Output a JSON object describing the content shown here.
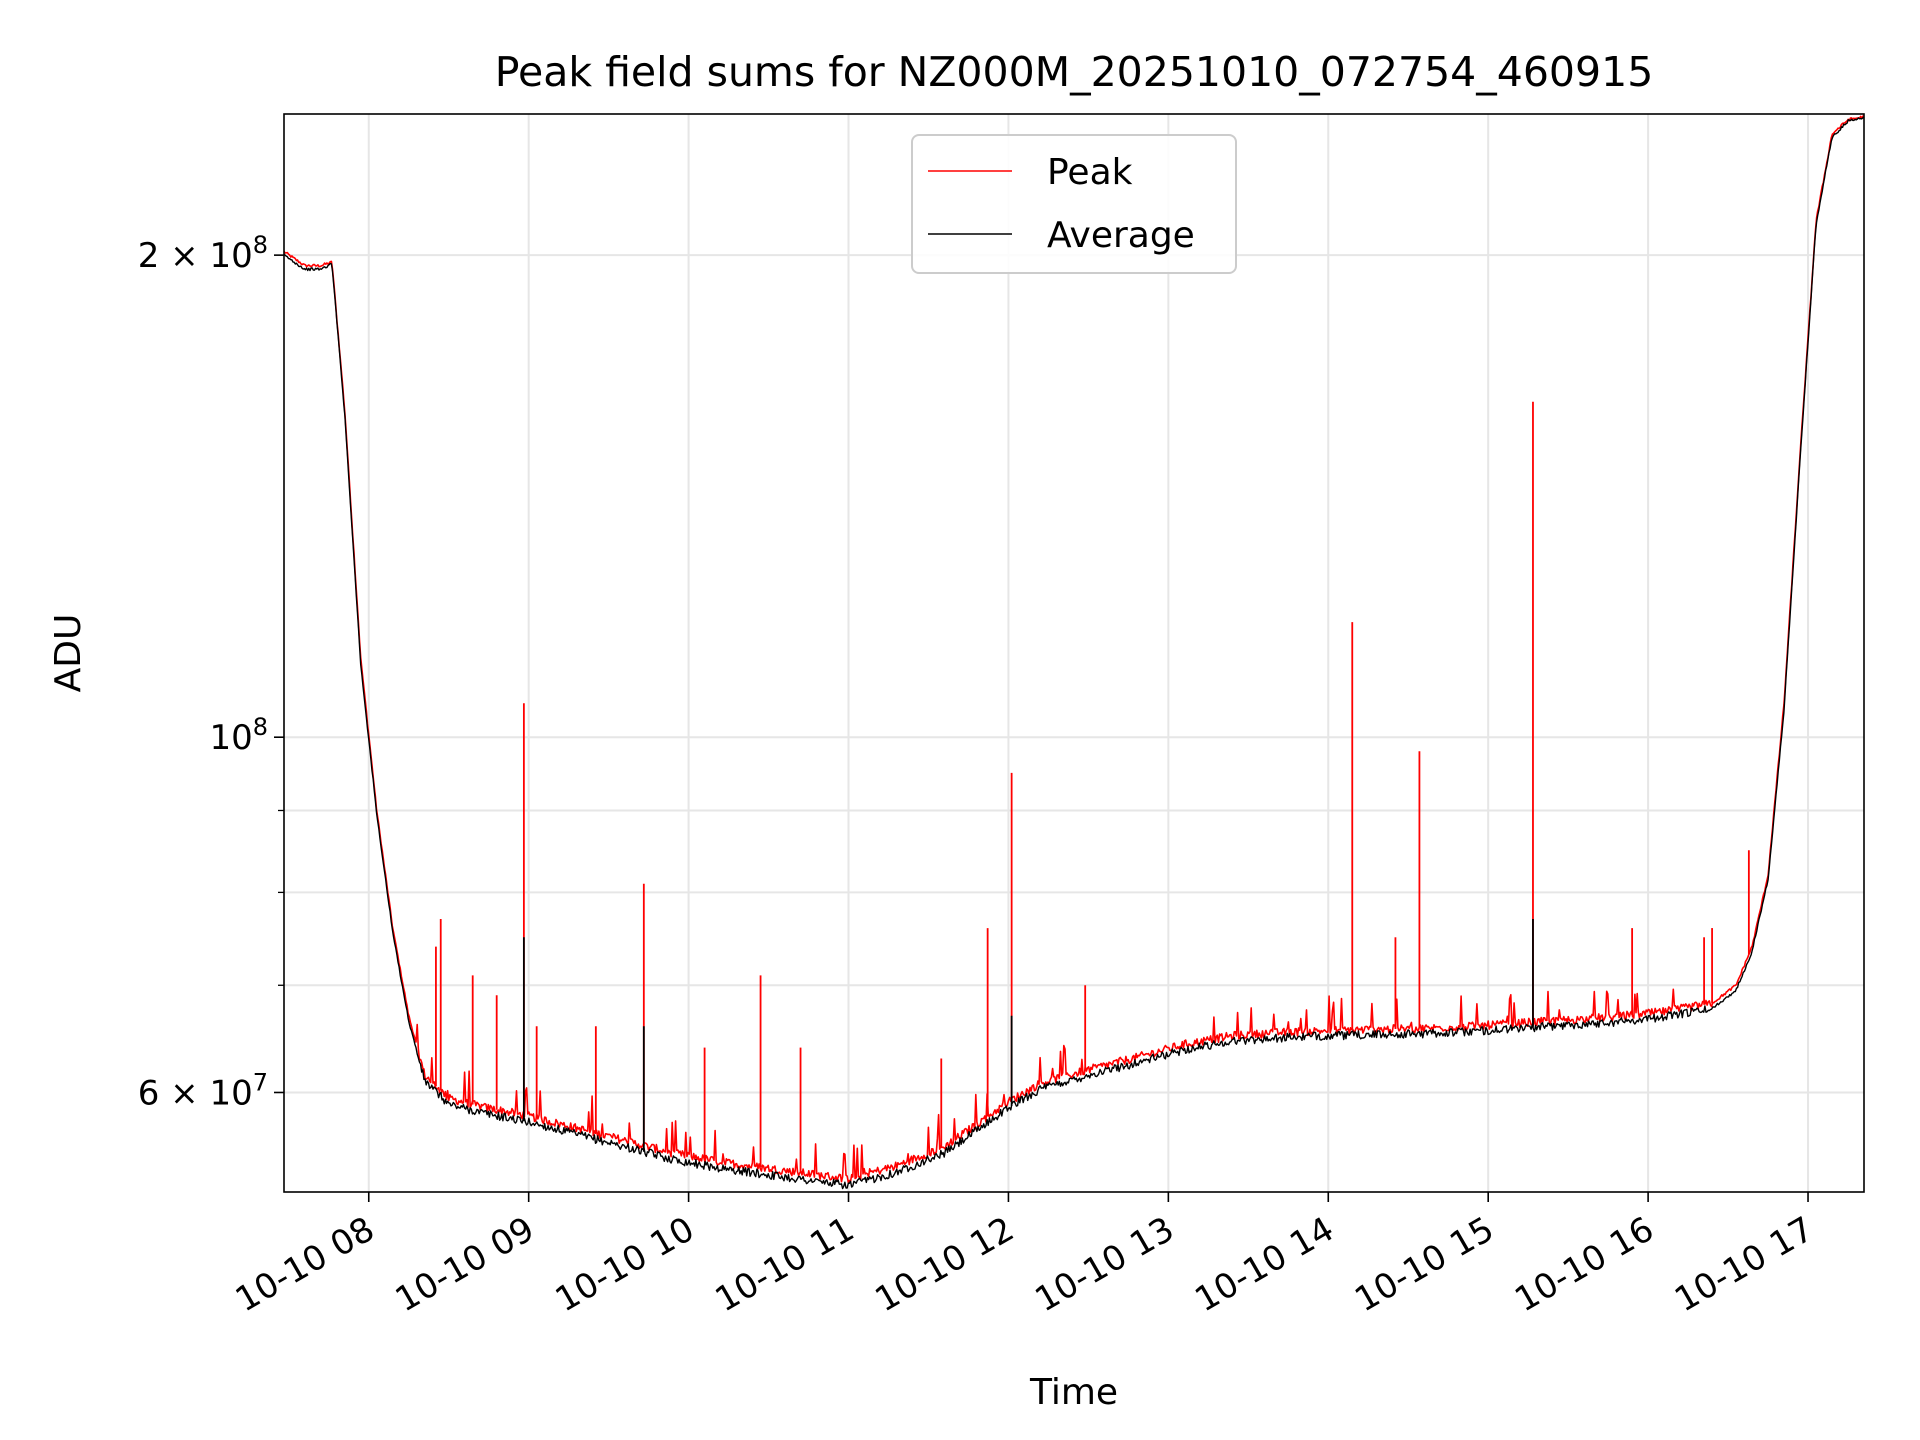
{
  "chart_data": {
    "type": "line",
    "title": "Peak field sums for NZ000M_20251010_072754_460915",
    "xlabel": "Time",
    "ylabel": "ADU",
    "yscale": "log",
    "grid": true,
    "legend_position": "top-center",
    "xlim": [
      7.47,
      17.35
    ],
    "ylim": [
      52000000,
      245000000
    ],
    "x_tick_values": [
      8,
      9,
      10,
      11,
      12,
      13,
      14,
      15,
      16,
      17
    ],
    "x_tick_labels": [
      "10-10 08",
      "10-10 09",
      "10-10 10",
      "10-10 11",
      "10-10 12",
      "10-10 13",
      "10-10 14",
      "10-10 15",
      "10-10 16",
      "10-10 17"
    ],
    "y_major_ticks": [
      {
        "value": 60000000,
        "mantissa": "6",
        "exponent": "7"
      },
      {
        "value": 100000000,
        "mantissa": "",
        "exponent": "8"
      },
      {
        "value": 200000000,
        "mantissa": "2",
        "exponent": "8"
      }
    ],
    "y_minor_ticks": [
      70000000,
      80000000,
      90000000
    ],
    "times_label": "×",
    "base_label": "10",
    "series": [
      {
        "name": "Peak",
        "color": "#ff0000",
        "x": [
          7.47,
          7.6,
          7.7,
          7.77,
          7.85,
          7.95,
          8.05,
          8.15,
          8.25,
          8.35,
          8.5,
          8.7,
          9.0,
          9.3,
          9.6,
          9.9,
          10.2,
          10.5,
          10.8,
          11.0,
          11.3,
          11.6,
          11.8,
          12.0,
          12.2,
          12.5,
          12.8,
          13.1,
          13.4,
          13.7,
          14.0,
          14.3,
          14.6,
          14.9,
          15.2,
          15.5,
          15.8,
          16.1,
          16.4,
          16.55,
          16.65,
          16.75,
          16.85,
          16.95,
          17.05,
          17.15,
          17.25,
          17.35
        ],
        "y": [
          201000000,
          197000000,
          197000000,
          198000000,
          160000000,
          112000000,
          90000000,
          76000000,
          67000000,
          61500000,
          59500000,
          58800000,
          58000000,
          57000000,
          56000000,
          55000000,
          54300000,
          53800000,
          53300000,
          53000000,
          54000000,
          55500000,
          57300000,
          59200000,
          60800000,
          62000000,
          63100000,
          64300000,
          65100000,
          65400000,
          65600000,
          65700000,
          65800000,
          66000000,
          66300000,
          66600000,
          66900000,
          67400000,
          68200000,
          70000000,
          74000000,
          82000000,
          105000000,
          150000000,
          210000000,
          238000000,
          243000000,
          244000000
        ],
        "spikes": [
          {
            "x": 8.42,
            "y": 74000000
          },
          {
            "x": 8.45,
            "y": 77000000
          },
          {
            "x": 8.65,
            "y": 71000000
          },
          {
            "x": 8.8,
            "y": 69000000
          },
          {
            "x": 8.97,
            "y": 105000000
          },
          {
            "x": 9.05,
            "y": 66000000
          },
          {
            "x": 9.42,
            "y": 66000000
          },
          {
            "x": 9.72,
            "y": 81000000
          },
          {
            "x": 10.1,
            "y": 64000000
          },
          {
            "x": 10.45,
            "y": 71000000
          },
          {
            "x": 10.7,
            "y": 64000000
          },
          {
            "x": 11.58,
            "y": 63000000
          },
          {
            "x": 11.87,
            "y": 76000000
          },
          {
            "x": 12.02,
            "y": 95000000
          },
          {
            "x": 12.48,
            "y": 70000000
          },
          {
            "x": 14.15,
            "y": 118000000
          },
          {
            "x": 14.42,
            "y": 75000000
          },
          {
            "x": 14.57,
            "y": 98000000
          },
          {
            "x": 15.28,
            "y": 162000000
          },
          {
            "x": 15.9,
            "y": 76000000
          },
          {
            "x": 16.35,
            "y": 75000000
          },
          {
            "x": 16.4,
            "y": 76000000
          },
          {
            "x": 16.63,
            "y": 85000000
          }
        ]
      },
      {
        "name": "Average",
        "color": "#000000",
        "x": [
          7.47,
          7.6,
          7.7,
          7.77,
          7.85,
          7.95,
          8.05,
          8.15,
          8.25,
          8.35,
          8.5,
          8.7,
          9.0,
          9.3,
          9.6,
          9.9,
          10.2,
          10.5,
          10.8,
          11.0,
          11.3,
          11.6,
          11.8,
          12.0,
          12.2,
          12.5,
          12.8,
          13.1,
          13.4,
          13.7,
          14.0,
          14.3,
          14.6,
          14.9,
          15.2,
          15.5,
          15.8,
          16.1,
          16.4,
          16.55,
          16.65,
          16.75,
          16.85,
          16.95,
          17.05,
          17.15,
          17.25,
          17.35
        ],
        "y": [
          200000000,
          196000000,
          196000000,
          197500000,
          159000000,
          111000000,
          89500000,
          75500000,
          66500000,
          61000000,
          59000000,
          58300000,
          57500000,
          56500000,
          55500000,
          54500000,
          53800000,
          53300000,
          52800000,
          52500000,
          53500000,
          55000000,
          56800000,
          58700000,
          60300000,
          61500000,
          62600000,
          63800000,
          64600000,
          64900000,
          65100000,
          65200000,
          65300000,
          65500000,
          65800000,
          66100000,
          66400000,
          66900000,
          67700000,
          69500000,
          73500000,
          81500000,
          104000000,
          149000000,
          209000000,
          237000000,
          242500000,
          243500000
        ],
        "spikes": [
          {
            "x": 8.97,
            "y": 75000000
          },
          {
            "x": 9.72,
            "y": 66000000
          },
          {
            "x": 12.02,
            "y": 67000000
          },
          {
            "x": 15.28,
            "y": 77000000
          }
        ]
      }
    ]
  }
}
